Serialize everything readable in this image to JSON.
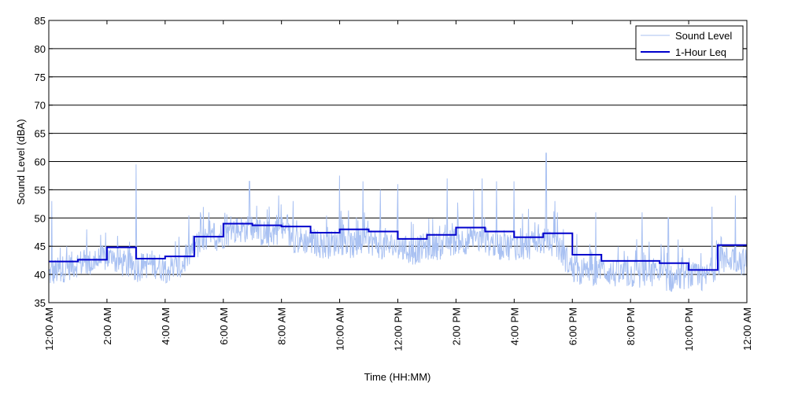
{
  "chart_data": {
    "type": "line",
    "title": "",
    "xlabel": "Time (HH:MM)",
    "ylabel": "Sound Level (dBA)",
    "xlim": [
      0,
      24
    ],
    "ylim": [
      35,
      85
    ],
    "yticks": [
      35,
      40,
      45,
      50,
      55,
      60,
      65,
      70,
      75,
      80,
      85
    ],
    "xticks": [
      0,
      2,
      4,
      6,
      8,
      10,
      12,
      14,
      16,
      18,
      20,
      22,
      24
    ],
    "xtick_labels": [
      "12:00 AM",
      "2:00 AM",
      "4:00 AM",
      "6:00 AM",
      "8:00 AM",
      "10:00 AM",
      "12:00 PM",
      "2:00 PM",
      "4:00 PM",
      "6:00 PM",
      "8:00 PM",
      "10:00 PM",
      "12:00 AM"
    ],
    "grid": "horizontal",
    "legend_position": "top-right",
    "colors": {
      "sound_level": "#a9c1f2",
      "leq": "#0000cc"
    },
    "series": [
      {
        "name": "Sound Level",
        "style": "thin noisy trace",
        "x": [
          0,
          0.5,
          1,
          1.5,
          2,
          2.5,
          3,
          3.5,
          4,
          4.5,
          5,
          5.5,
          6,
          6.5,
          7,
          7.5,
          8,
          8.5,
          9,
          9.5,
          10,
          10.5,
          11,
          11.5,
          12,
          12.5,
          13,
          13.5,
          14,
          14.5,
          15,
          15.5,
          16,
          16.5,
          17,
          17.5,
          18,
          18.5,
          19,
          19.5,
          20,
          20.5,
          21,
          21.5,
          22,
          22.5,
          23,
          23.5,
          24
        ],
        "y": [
          40,
          41,
          42,
          42,
          43,
          42,
          41,
          42,
          41,
          41,
          45,
          46,
          47,
          48,
          48,
          47,
          48,
          46,
          46,
          45,
          46,
          45,
          46,
          45,
          45,
          44,
          45,
          45,
          46,
          46,
          46,
          45,
          45,
          45,
          46,
          45,
          41,
          40,
          41,
          40,
          40,
          40,
          40,
          39,
          40,
          39,
          42,
          43,
          42
        ],
        "spikes": [
          [
            0.1,
            53
          ],
          [
            1.3,
            48
          ],
          [
            3.0,
            59.5
          ],
          [
            5.5,
            51
          ],
          [
            6.9,
            56.5
          ],
          [
            7.9,
            54
          ],
          [
            8.4,
            53
          ],
          [
            10.0,
            57.5
          ],
          [
            10.8,
            56.5
          ],
          [
            11.4,
            55
          ],
          [
            12.0,
            56
          ],
          [
            13.7,
            57
          ],
          [
            14.6,
            55
          ],
          [
            14.9,
            57
          ],
          [
            15.4,
            56.5
          ],
          [
            16.0,
            56.5
          ],
          [
            17.1,
            61.5
          ],
          [
            17.4,
            53
          ],
          [
            18.8,
            51
          ],
          [
            20.4,
            51
          ],
          [
            21.3,
            50
          ],
          [
            22.8,
            52
          ],
          [
            23.6,
            54
          ]
        ]
      },
      {
        "name": "1-Hour Leq",
        "style": "step",
        "x": [
          0,
          1,
          2,
          3,
          4,
          5,
          6,
          7,
          8,
          9,
          10,
          11,
          12,
          13,
          14,
          15,
          16,
          17,
          18,
          19,
          20,
          21,
          22,
          23,
          24
        ],
        "y": [
          42.3,
          42.6,
          44.8,
          42.8,
          43.2,
          46.7,
          49.0,
          48.7,
          48.5,
          47.4,
          48.0,
          47.6,
          46.3,
          47.0,
          48.3,
          47.6,
          46.6,
          47.3,
          43.5,
          42.4,
          42.4,
          42.0,
          40.8,
          45.2,
          45.2
        ]
      }
    ]
  }
}
